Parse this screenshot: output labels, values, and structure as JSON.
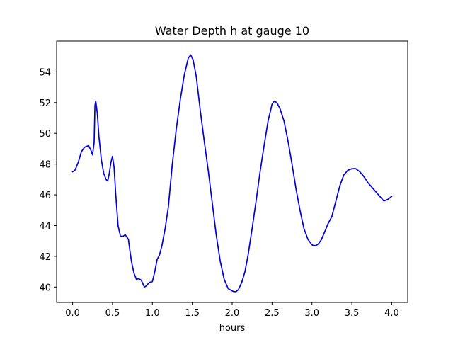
{
  "chart_data": {
    "type": "line",
    "title": "Water Depth h at gauge 10",
    "xlabel": "hours",
    "ylabel": "",
    "xlim": [
      -0.2,
      4.2
    ],
    "ylim": [
      39.0,
      56.0
    ],
    "xticks": [
      0.0,
      0.5,
      1.0,
      1.5,
      2.0,
      2.5,
      3.0,
      3.5,
      4.0
    ],
    "xtick_labels": [
      "0.0",
      "0.5",
      "1.0",
      "1.5",
      "2.0",
      "2.5",
      "3.0",
      "3.5",
      "4.0"
    ],
    "yticks": [
      40,
      42,
      44,
      46,
      48,
      50,
      52,
      54
    ],
    "ytick_labels": [
      "40",
      "42",
      "44",
      "46",
      "48",
      "50",
      "52",
      "54"
    ],
    "grid": false,
    "series": [
      {
        "color": "#0000dd",
        "x": [
          0.0,
          0.03,
          0.07,
          0.11,
          0.15,
          0.2,
          0.23,
          0.25,
          0.27,
          0.28,
          0.29,
          0.31,
          0.33,
          0.36,
          0.39,
          0.42,
          0.44,
          0.46,
          0.48,
          0.5,
          0.52,
          0.54,
          0.57,
          0.6,
          0.63,
          0.66,
          0.7,
          0.72,
          0.74,
          0.77,
          0.8,
          0.83,
          0.86,
          0.9,
          0.93,
          0.96,
          1.0,
          1.03,
          1.06,
          1.09,
          1.12,
          1.16,
          1.2,
          1.25,
          1.3,
          1.35,
          1.4,
          1.45,
          1.48,
          1.51,
          1.55,
          1.6,
          1.65,
          1.7,
          1.75,
          1.8,
          1.85,
          1.9,
          1.95,
          2.0,
          2.02,
          2.05,
          2.08,
          2.12,
          2.16,
          2.2,
          2.25,
          2.3,
          2.35,
          2.4,
          2.45,
          2.5,
          2.53,
          2.56,
          2.6,
          2.65,
          2.7,
          2.75,
          2.8,
          2.85,
          2.9,
          2.95,
          3.0,
          3.02,
          3.05,
          3.08,
          3.12,
          3.16,
          3.2,
          3.25,
          3.3,
          3.35,
          3.4,
          3.45,
          3.5,
          3.55,
          3.6,
          3.65,
          3.7,
          3.75,
          3.8,
          3.85,
          3.9,
          3.95,
          4.0
        ],
        "values": [
          47.5,
          47.6,
          48.1,
          48.8,
          49.1,
          49.2,
          48.9,
          48.6,
          49.4,
          51.8,
          52.1,
          51.3,
          49.8,
          48.3,
          47.4,
          47.0,
          46.9,
          47.4,
          48.1,
          48.5,
          47.8,
          46.1,
          44.0,
          43.3,
          43.3,
          43.4,
          43.1,
          42.3,
          41.6,
          40.9,
          40.5,
          40.55,
          40.45,
          40.0,
          40.1,
          40.3,
          40.35,
          41.0,
          41.8,
          42.1,
          42.7,
          43.8,
          45.2,
          48.0,
          50.3,
          52.2,
          53.8,
          54.9,
          55.1,
          54.8,
          53.7,
          51.5,
          49.5,
          47.6,
          45.5,
          43.4,
          41.7,
          40.5,
          39.9,
          39.75,
          39.7,
          39.7,
          39.85,
          40.3,
          41.0,
          42.1,
          43.8,
          45.6,
          47.5,
          49.2,
          50.8,
          51.9,
          52.1,
          52.0,
          51.6,
          50.8,
          49.5,
          48.0,
          46.4,
          45.0,
          43.8,
          43.1,
          42.75,
          42.7,
          42.7,
          42.8,
          43.1,
          43.6,
          44.1,
          44.6,
          45.6,
          46.6,
          47.3,
          47.6,
          47.7,
          47.7,
          47.5,
          47.2,
          46.8,
          46.5,
          46.2,
          45.9,
          45.6,
          45.7,
          45.9
        ]
      }
    ]
  }
}
